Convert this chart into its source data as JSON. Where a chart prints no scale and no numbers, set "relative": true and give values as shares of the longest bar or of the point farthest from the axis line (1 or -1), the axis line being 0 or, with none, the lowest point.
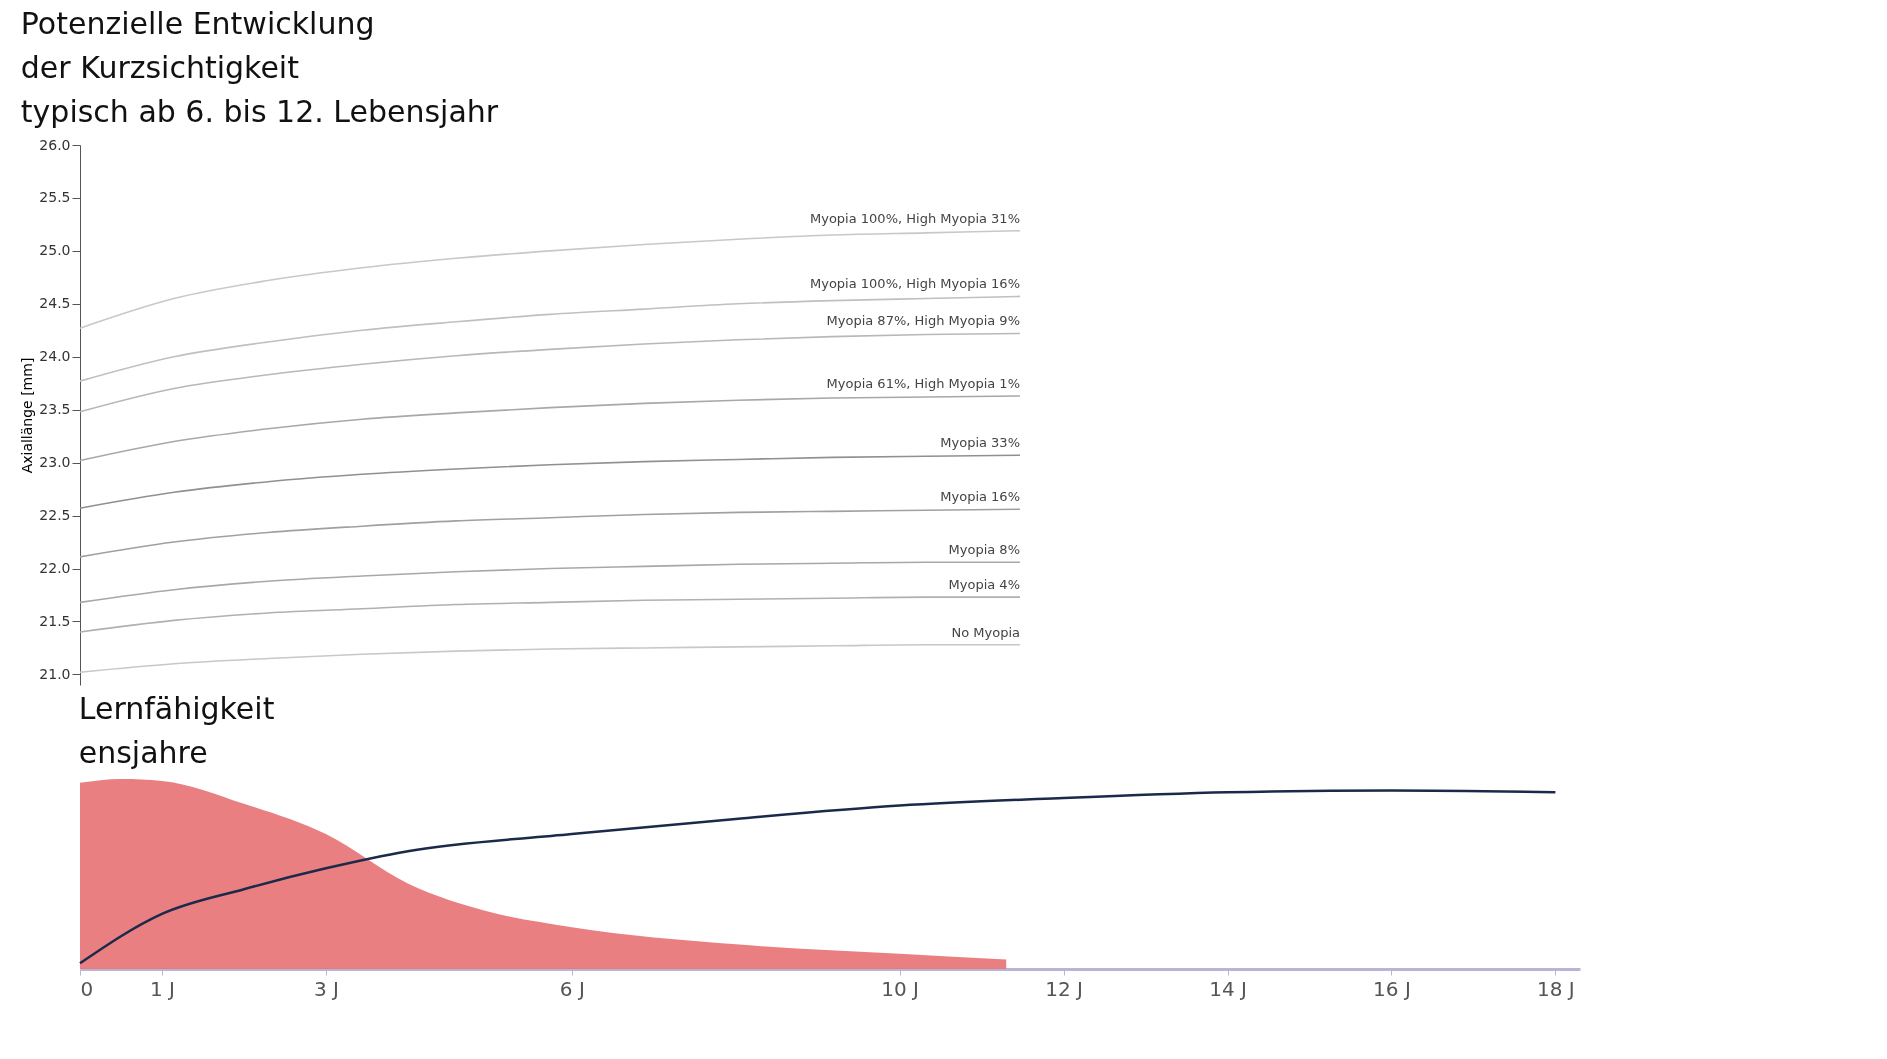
{
  "chart_data": [
    {
      "type": "line",
      "ylabel": "Axiallänge [mm]",
      "annotations": [
        "Potenzielle Entwicklung\nder Kurzsichtigkeit\ntypisch ab 6. bis 12. Lebensjahr"
      ],
      "categories": [
        null,
        null,
        null,
        null,
        null,
        null,
        null,
        null,
        null,
        null,
        null
      ],
      "ylim": [
        20.9,
        26.0
      ],
      "yticks": [
        {
          "value": 21,
          "label": "21.0"
        },
        21.5,
        {
          "value": 22,
          "label": "22.0"
        },
        22.5,
        {
          "value": 23,
          "label": "23.0"
        },
        23.5,
        {
          "value": 24,
          "label": "24.0"
        },
        24.5,
        {
          "value": 25,
          "label": "25.0"
        },
        25.5,
        {
          "value": 26,
          "label": "26.0"
        }
      ],
      "tick_labels": "y",
      "grid": false,
      "legend": false,
      "series": [
        {
          "name": "Myopia 100%, High Myopia 31%",
          "color": "#c8c8c8",
          "values": [
            24.27,
            24.55,
            24.72,
            24.84,
            24.93,
            25.0,
            25.06,
            25.11,
            25.15,
            25.17,
            25.19
          ]
        },
        {
          "name": "Myopia 100%, High Myopia 16%",
          "color": "#c0c0c0",
          "values": [
            23.77,
            24.0,
            24.14,
            24.25,
            24.33,
            24.4,
            24.45,
            24.5,
            24.53,
            24.55,
            24.57
          ]
        },
        {
          "name": "Myopia 87%, High Myopia 9%",
          "color": "#b8b8b8",
          "values": [
            23.48,
            23.7,
            23.83,
            23.93,
            24.01,
            24.07,
            24.12,
            24.16,
            24.19,
            24.21,
            24.22
          ]
        },
        {
          "name": "Myopia 61%, High Myopia 1%",
          "color": "#a8a8a8",
          "values": [
            23.02,
            23.2,
            23.32,
            23.41,
            23.47,
            23.52,
            23.56,
            23.59,
            23.61,
            23.62,
            23.63
          ]
        },
        {
          "name": "Myopia 33%",
          "color": "#909090",
          "values": [
            22.57,
            22.72,
            22.82,
            22.89,
            22.94,
            22.98,
            23.01,
            23.03,
            23.05,
            23.06,
            23.07
          ]
        },
        {
          "name": "Myopia 16%",
          "color": "#a0a0a0",
          "values": [
            22.11,
            22.25,
            22.34,
            22.4,
            22.45,
            22.48,
            22.51,
            22.53,
            22.54,
            22.55,
            22.56
          ]
        },
        {
          "name": "Myopia 8%",
          "color": "#a8a8a8",
          "values": [
            21.68,
            21.8,
            21.88,
            21.93,
            21.97,
            22.0,
            22.02,
            22.04,
            22.05,
            22.06,
            22.06
          ]
        },
        {
          "name": "Myopia 4%",
          "color": "#b0b0b0",
          "values": [
            21.4,
            21.51,
            21.58,
            21.62,
            21.66,
            21.68,
            21.7,
            21.71,
            21.72,
            21.73,
            21.73
          ]
        },
        {
          "name": "No Myopia",
          "color": "#c8c8c8",
          "values": [
            21.02,
            21.1,
            21.15,
            21.19,
            21.22,
            21.24,
            21.25,
            21.26,
            21.27,
            21.28,
            21.28
          ]
        }
      ]
    },
    {
      "type": "area",
      "relative": true,
      "annotations": [
        "Lernfähigkeit\nensjahre"
      ],
      "xlim": [
        0,
        18.3
      ],
      "xticks": [
        0,
        {
          "value": 1,
          "label": "1 J"
        },
        {
          "value": 3,
          "label": "3 J"
        },
        {
          "value": 6,
          "label": "6 J"
        },
        {
          "value": 10,
          "label": "10 J"
        },
        {
          "value": 12,
          "label": "12 J"
        },
        {
          "value": 14,
          "label": "14 J"
        },
        {
          "value": 16,
          "label": "16 J"
        },
        {
          "value": 18,
          "label": "18 J"
        }
      ],
      "grid": false,
      "series": [
        {
          "type": "area",
          "color": "#e8787a",
          "x": [
            0,
            0.5,
            1,
            2,
            3,
            4,
            5,
            6,
            8,
            10,
            11.3
          ],
          "values": [
            0.98,
            1.0,
            0.99,
            0.87,
            0.71,
            0.45,
            0.3,
            0.22,
            0.13,
            0.08,
            0.05
          ]
        },
        {
          "type": "line",
          "color": "#1b2a4a",
          "x": [
            0,
            1,
            2,
            3,
            4,
            6,
            8,
            10,
            12,
            14,
            16,
            18
          ],
          "values": [
            0.03,
            0.29,
            0.42,
            0.53,
            0.62,
            0.71,
            0.79,
            0.86,
            0.9,
            0.93,
            0.94,
            0.93
          ]
        }
      ]
    }
  ]
}
